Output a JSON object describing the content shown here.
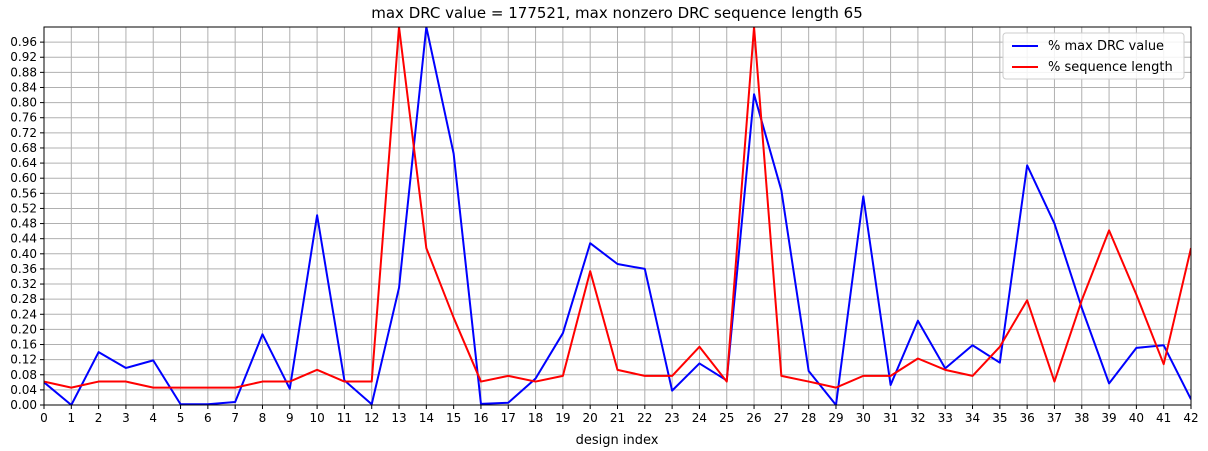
{
  "chart_data": {
    "type": "line",
    "title": "max DRC value = 177521, max nonzero DRC sequence length 65",
    "xlabel": "design index",
    "ylabel": "",
    "xlim": [
      0,
      42
    ],
    "ylim": [
      0,
      1.0
    ],
    "grid": true,
    "legend_position": "top-right",
    "x": [
      0,
      1,
      2,
      3,
      4,
      5,
      6,
      7,
      8,
      9,
      10,
      11,
      12,
      13,
      14,
      15,
      16,
      17,
      18,
      19,
      20,
      21,
      22,
      23,
      24,
      25,
      26,
      27,
      28,
      29,
      30,
      31,
      32,
      33,
      34,
      35,
      36,
      37,
      38,
      39,
      40,
      41,
      42
    ],
    "x_ticks": [
      "0",
      "1",
      "2",
      "3",
      "4",
      "5",
      "6",
      "7",
      "8",
      "9",
      "10",
      "11",
      "12",
      "13",
      "14",
      "15",
      "16",
      "17",
      "18",
      "19",
      "20",
      "21",
      "22",
      "23",
      "24",
      "25",
      "26",
      "27",
      "28",
      "29",
      "30",
      "31",
      "32",
      "33",
      "34",
      "35",
      "36",
      "37",
      "38",
      "39",
      "40",
      "41",
      "42"
    ],
    "y_ticks": [
      "0.00",
      "0.04",
      "0.08",
      "0.12",
      "0.16",
      "0.20",
      "0.24",
      "0.28",
      "0.32",
      "0.36",
      "0.40",
      "0.44",
      "0.48",
      "0.52",
      "0.56",
      "0.60",
      "0.64",
      "0.68",
      "0.72",
      "0.76",
      "0.80",
      "0.84",
      "0.88",
      "0.92",
      "0.96"
    ],
    "y_tick_values": [
      0,
      0.04,
      0.08,
      0.12,
      0.16,
      0.2,
      0.24,
      0.28,
      0.32,
      0.36,
      0.4,
      0.44,
      0.48,
      0.52,
      0.56,
      0.6,
      0.64,
      0.68,
      0.72,
      0.76,
      0.8,
      0.84,
      0.88,
      0.92,
      0.96
    ],
    "series": [
      {
        "name": "% max DRC value",
        "color": "#0000ff",
        "values": [
          0.06,
          0.0,
          0.14,
          0.098,
          0.118,
          0.002,
          0.002,
          0.008,
          0.187,
          0.043,
          0.502,
          0.065,
          0.002,
          0.31,
          1.0,
          0.665,
          0.003,
          0.006,
          0.07,
          0.19,
          0.428,
          0.373,
          0.36,
          0.038,
          0.11,
          0.065,
          0.822,
          0.568,
          0.09,
          0.0,
          0.552,
          0.053,
          0.223,
          0.097,
          0.158,
          0.112,
          0.634,
          0.48,
          0.257,
          0.057,
          0.151,
          0.158,
          0.015
        ]
      },
      {
        "name": "% sequence length",
        "color": "#ff0000",
        "values": [
          0.062,
          0.046,
          0.062,
          0.062,
          0.046,
          0.046,
          0.046,
          0.046,
          0.062,
          0.062,
          0.093,
          0.062,
          0.062,
          1.0,
          0.415,
          0.231,
          0.062,
          0.077,
          0.062,
          0.077,
          0.354,
          0.093,
          0.077,
          0.077,
          0.154,
          0.062,
          1.0,
          0.077,
          0.062,
          0.046,
          0.077,
          0.077,
          0.123,
          0.093,
          0.077,
          0.154,
          0.277,
          0.062,
          0.277,
          0.462,
          0.292,
          0.108,
          0.415
        ]
      }
    ]
  }
}
